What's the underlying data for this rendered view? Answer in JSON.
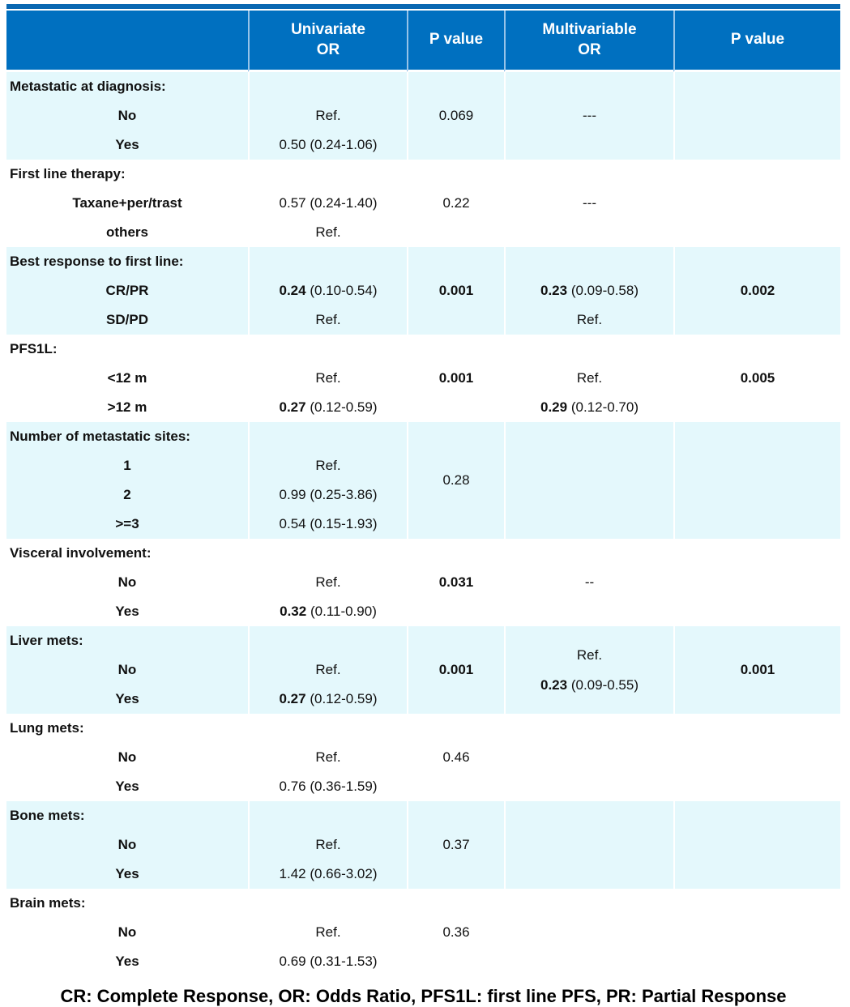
{
  "colors": {
    "header_bg": "#0070C0",
    "band_bg": "#E4F8FC",
    "header_separator": "#96C3E8",
    "top_strip": "#0967B1",
    "header_text": "#FFFFFF"
  },
  "table": {
    "header": {
      "columns": [
        "",
        "Univariate\nOR",
        "P value",
        "Multivariable\nOR",
        "P value"
      ]
    },
    "sections": [
      {
        "label": "Metastatic at diagnosis:",
        "rows": [
          {
            "label": "No",
            "uni_or": {
              "n": "Ref."
            },
            "uni_p": {
              "n": "0.069"
            },
            "multi_or": {
              "n": "---"
            }
          },
          {
            "label": "Yes",
            "uni_or": {
              "n": "0.50 (0.24-1.06)"
            }
          }
        ]
      },
      {
        "label": "First line therapy:",
        "rows": [
          {
            "label": "Taxane+per/trast",
            "uni_or": {
              "n": "0.57 (0.24-1.40)"
            },
            "uni_p": {
              "n": "0.22"
            },
            "multi_or": {
              "n": "---"
            }
          },
          {
            "label": "others",
            "uni_or": {
              "n": "Ref."
            }
          }
        ]
      },
      {
        "label": "Best response to first line:",
        "rows": [
          {
            "label": "CR/PR",
            "uni_or": {
              "b": "0.24",
              "n": "(0.10-0.54)"
            },
            "uni_p": {
              "b": "0.001"
            },
            "multi_or": {
              "b": "0.23",
              "n": "(0.09-0.58)"
            },
            "multi_p": {
              "b": "0.002"
            }
          },
          {
            "label": "SD/PD",
            "uni_or": {
              "n": "Ref."
            },
            "multi_or": {
              "n": "Ref."
            }
          }
        ]
      },
      {
        "label": "PFS1L:",
        "rows": [
          {
            "label": "<12 m",
            "uni_or": {
              "n": "Ref."
            },
            "uni_p": {
              "b": "0.001"
            },
            "multi_or": {
              "n": "Ref."
            },
            "multi_p": {
              "b": "0.005"
            }
          },
          {
            "label": ">12 m",
            "uni_or": {
              "b": "0.27",
              "n": "(0.12-0.59)"
            },
            "multi_or": {
              "b": "0.29",
              "n": "(0.12-0.70)"
            }
          }
        ]
      },
      {
        "label": "Number of metastatic sites:",
        "merged": {
          "uni_p": {
            "n": "0.28"
          }
        },
        "rows": [
          {
            "label": "1",
            "uni_or": {
              "n": "Ref."
            }
          },
          {
            "label": "2",
            "uni_or": {
              "n": "0.99 (0.25-3.86)"
            }
          },
          {
            "label": ">=3",
            "uni_or": {
              "n": "0.54 (0.15-1.93)"
            }
          }
        ]
      },
      {
        "label": "Visceral involvement:",
        "rows": [
          {
            "label": "No",
            "uni_or": {
              "n": "Ref."
            },
            "uni_p": {
              "b": "0.031"
            },
            "multi_or": {
              "n": "--"
            }
          },
          {
            "label": "Yes",
            "uni_or": {
              "b": "0.32",
              "n": "(0.11-0.90)"
            }
          }
        ]
      },
      {
        "label": "Liver mets:",
        "merged": {
          "multi_or": [
            {
              "n": "Ref."
            },
            {
              "b": "0.23",
              "n": "(0.09-0.55)"
            }
          ],
          "multi_p": {
            "b": "0.001"
          }
        },
        "rows": [
          {
            "label": "No",
            "uni_or": {
              "n": "Ref."
            },
            "uni_p": {
              "b": "0.001"
            }
          },
          {
            "label": "Yes",
            "uni_or": {
              "b": "0.27",
              "n": "(0.12-0.59)"
            }
          }
        ]
      },
      {
        "label": "Lung mets:",
        "rows": [
          {
            "label": "No",
            "uni_or": {
              "n": "Ref."
            },
            "uni_p": {
              "n": "0.46"
            }
          },
          {
            "label": "Yes",
            "uni_or": {
              "n": "0.76 (0.36-1.59)"
            }
          }
        ]
      },
      {
        "label": "Bone mets:",
        "rows": [
          {
            "label": "No",
            "uni_or": {
              "n": "Ref."
            },
            "uni_p": {
              "n": "0.37"
            }
          },
          {
            "label": "Yes",
            "uni_or": {
              "n": "1.42 (0.66-3.02)"
            }
          }
        ]
      },
      {
        "label": "Brain mets:",
        "rows": [
          {
            "label": "No",
            "uni_or": {
              "n": "Ref."
            },
            "uni_p": {
              "n": "0.36"
            }
          },
          {
            "label": "Yes",
            "uni_or": {
              "n": "0.69 (0.31-1.53)"
            }
          }
        ]
      }
    ]
  },
  "footer": {
    "text": "CR: Complete Response, OR: Odds Ratio, PFS1L: first line PFS, PR: Partial Response"
  }
}
